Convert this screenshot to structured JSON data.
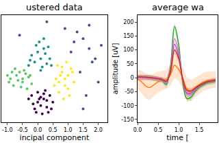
{
  "chart_data": [
    {
      "type": "scatter",
      "title": "ustered data",
      "x_label": "incipal component",
      "xlim": [
        -1.2,
        2.3
      ],
      "xticks": [
        {
          "value": -1.0,
          "label": "-1.0"
        },
        {
          "value": -0.5,
          "label": "-0.5"
        },
        {
          "value": 0.0,
          "label": "0.0"
        },
        {
          "value": 0.5,
          "label": "0.5"
        },
        {
          "value": 1.0,
          "label": "1.0"
        },
        {
          "value": 1.5,
          "label": "1.5"
        },
        {
          "value": 2.0,
          "label": "2.0"
        }
      ],
      "ylim": [
        -1.3,
        1.9
      ],
      "tick_labels": "x",
      "grid": false,
      "marker": "circle",
      "series": [
        {
          "color": "#440154",
          "x": [
            -0.2,
            0.0,
            0.2,
            0.4,
            -0.1,
            0.1,
            0.3,
            0.5,
            0.0,
            0.2,
            -0.3,
            0.35,
            0.15,
            0.05,
            0.45,
            -0.15,
            0.25,
            0.1,
            0.3,
            -0.05
          ],
          "y": [
            -0.5,
            -0.7,
            -0.6,
            -0.5,
            -0.9,
            -0.8,
            -0.85,
            -0.7,
            -0.4,
            -0.45,
            -0.6,
            -1.0,
            -1.05,
            -0.6,
            -0.9,
            -0.75,
            -0.35,
            -0.55,
            -0.65,
            -1.0
          ]
        },
        {
          "color": "#5ec962",
          "x": [
            -0.9,
            -0.7,
            -0.5,
            -0.3,
            -0.8,
            -0.6,
            -0.4,
            -0.2,
            -1.0,
            -0.65,
            -0.45,
            -0.85,
            -0.55,
            -0.35,
            -0.75,
            -0.25,
            -0.95,
            -0.5
          ],
          "y": [
            0.0,
            0.1,
            -0.1,
            0.05,
            -0.2,
            0.2,
            0.15,
            -0.15,
            0.1,
            -0.05,
            0.25,
            0.2,
            -0.25,
            -0.3,
            0.3,
            0.1,
            -0.1,
            0.0
          ]
        },
        {
          "color": "#21918c",
          "x": [
            -0.3,
            -0.1,
            0.1,
            0.3,
            0.0,
            0.2,
            0.4,
            -0.2,
            0.15,
            0.25,
            -0.05,
            0.35,
            0.05,
            -0.25,
            0.45,
            0.1,
            0.2
          ],
          "y": [
            0.4,
            0.5,
            0.6,
            0.45,
            0.8,
            0.9,
            0.6,
            0.7,
            0.35,
            0.75,
            1.0,
            0.95,
            1.1,
            0.55,
            0.4,
            0.25,
            1.2
          ]
        },
        {
          "color": "#fde725",
          "x": [
            0.6,
            0.8,
            1.0,
            1.2,
            0.7,
            0.9,
            1.1,
            0.65,
            0.85,
            1.05,
            0.75,
            0.95,
            1.15,
            0.55,
            1.0,
            0.8,
            0.7,
            0.9
          ],
          "y": [
            0.0,
            0.2,
            0.1,
            -0.1,
            -0.4,
            -0.2,
            0.3,
            0.4,
            -0.6,
            -0.5,
            0.1,
            0.5,
            0.2,
            -0.2,
            -0.3,
            0.35,
            -0.1,
            0.0
          ]
        },
        {
          "color": "#3b528b",
          "x": [
            1.3,
            1.5,
            1.7,
            1.9,
            2.1,
            1.4,
            1.6,
            1.8,
            2.0,
            0.3,
            0.9,
            1.2,
            1.5,
            -0.6,
            1.7,
            1.1
          ],
          "y": [
            1.4,
            1.2,
            0.9,
            0.6,
            1.0,
            0.2,
            -0.5,
            0.5,
            -0.1,
            1.7,
            1.5,
            1.1,
            -0.9,
            1.3,
            1.6,
            0.8
          ]
        }
      ]
    },
    {
      "type": "line",
      "title": "average wa",
      "x_label": "time [",
      "y_label": "amplitude [uV]",
      "xlim": [
        0,
        1.95
      ],
      "xticks": [
        {
          "value": 0.0,
          "label": "0.0"
        },
        {
          "value": 0.5,
          "label": "0.5"
        },
        {
          "value": 1.0,
          "label": "1.0"
        },
        {
          "value": 1.5,
          "label": "1.5"
        }
      ],
      "ylim": [
        -160,
        225
      ],
      "yticks": [
        -150,
        -100,
        -50,
        0,
        50,
        100,
        150,
        200
      ],
      "grid": false,
      "x": [
        0,
        0.1,
        0.2,
        0.3,
        0.4,
        0.5,
        0.6,
        0.7,
        0.8,
        0.9,
        1.0,
        1.1,
        1.2,
        1.3,
        1.4,
        1.5,
        1.6,
        1.7,
        1.8,
        1.9
      ],
      "series": [
        {
          "color": "#ff7f0e",
          "values": [
            -5,
            -15,
            -30,
            -35,
            -25,
            -15,
            -10,
            -5,
            10,
            45,
            30,
            0,
            -40,
            -45,
            -35,
            -25,
            -15,
            -10,
            -8,
            -5
          ],
          "error": [
            35,
            40,
            45,
            45,
            40,
            38,
            35,
            35,
            38,
            45,
            42,
            40,
            40,
            38,
            35,
            35,
            33,
            32,
            30,
            30
          ]
        },
        {
          "color": "#2ca02c",
          "values": [
            0,
            0,
            0,
            0,
            -2,
            -5,
            -10,
            -25,
            40,
            185,
            120,
            -20,
            -75,
            -70,
            -50,
            -35,
            -25,
            -18,
            -15,
            -12
          ],
          "error": [
            10,
            10,
            10,
            10,
            10,
            10,
            10,
            12,
            15,
            15,
            15,
            12,
            12,
            12,
            10,
            10,
            10,
            10,
            10,
            10
          ]
        },
        {
          "color": "#e377c2",
          "values": [
            0,
            0,
            0,
            -1,
            -3,
            -5,
            -8,
            -18,
            30,
            140,
            95,
            -10,
            -60,
            -60,
            -45,
            -32,
            -22,
            -16,
            -13,
            -10
          ],
          "error": [
            8,
            8,
            8,
            8,
            8,
            8,
            8,
            10,
            12,
            12,
            12,
            10,
            10,
            10,
            8,
            8,
            8,
            8,
            8,
            8
          ]
        },
        {
          "color": "#9467bd",
          "values": [
            2,
            2,
            1,
            0,
            -2,
            -4,
            -7,
            -15,
            25,
            120,
            80,
            -8,
            -55,
            -55,
            -42,
            -30,
            -22,
            -15,
            -12,
            -10
          ],
          "error": [
            8,
            8,
            8,
            8,
            8,
            8,
            8,
            10,
            12,
            12,
            12,
            10,
            10,
            10,
            8,
            8,
            8,
            8,
            8,
            8
          ]
        },
        {
          "color": "#d62728",
          "values": [
            3,
            3,
            2,
            1,
            -1,
            -3,
            -6,
            -12,
            20,
            100,
            70,
            -5,
            -45,
            -48,
            -38,
            -28,
            -20,
            -14,
            -11,
            -9
          ],
          "error": [
            8,
            8,
            8,
            8,
            8,
            8,
            8,
            10,
            12,
            12,
            12,
            10,
            10,
            10,
            8,
            8,
            8,
            8,
            8,
            8
          ]
        }
      ]
    }
  ]
}
